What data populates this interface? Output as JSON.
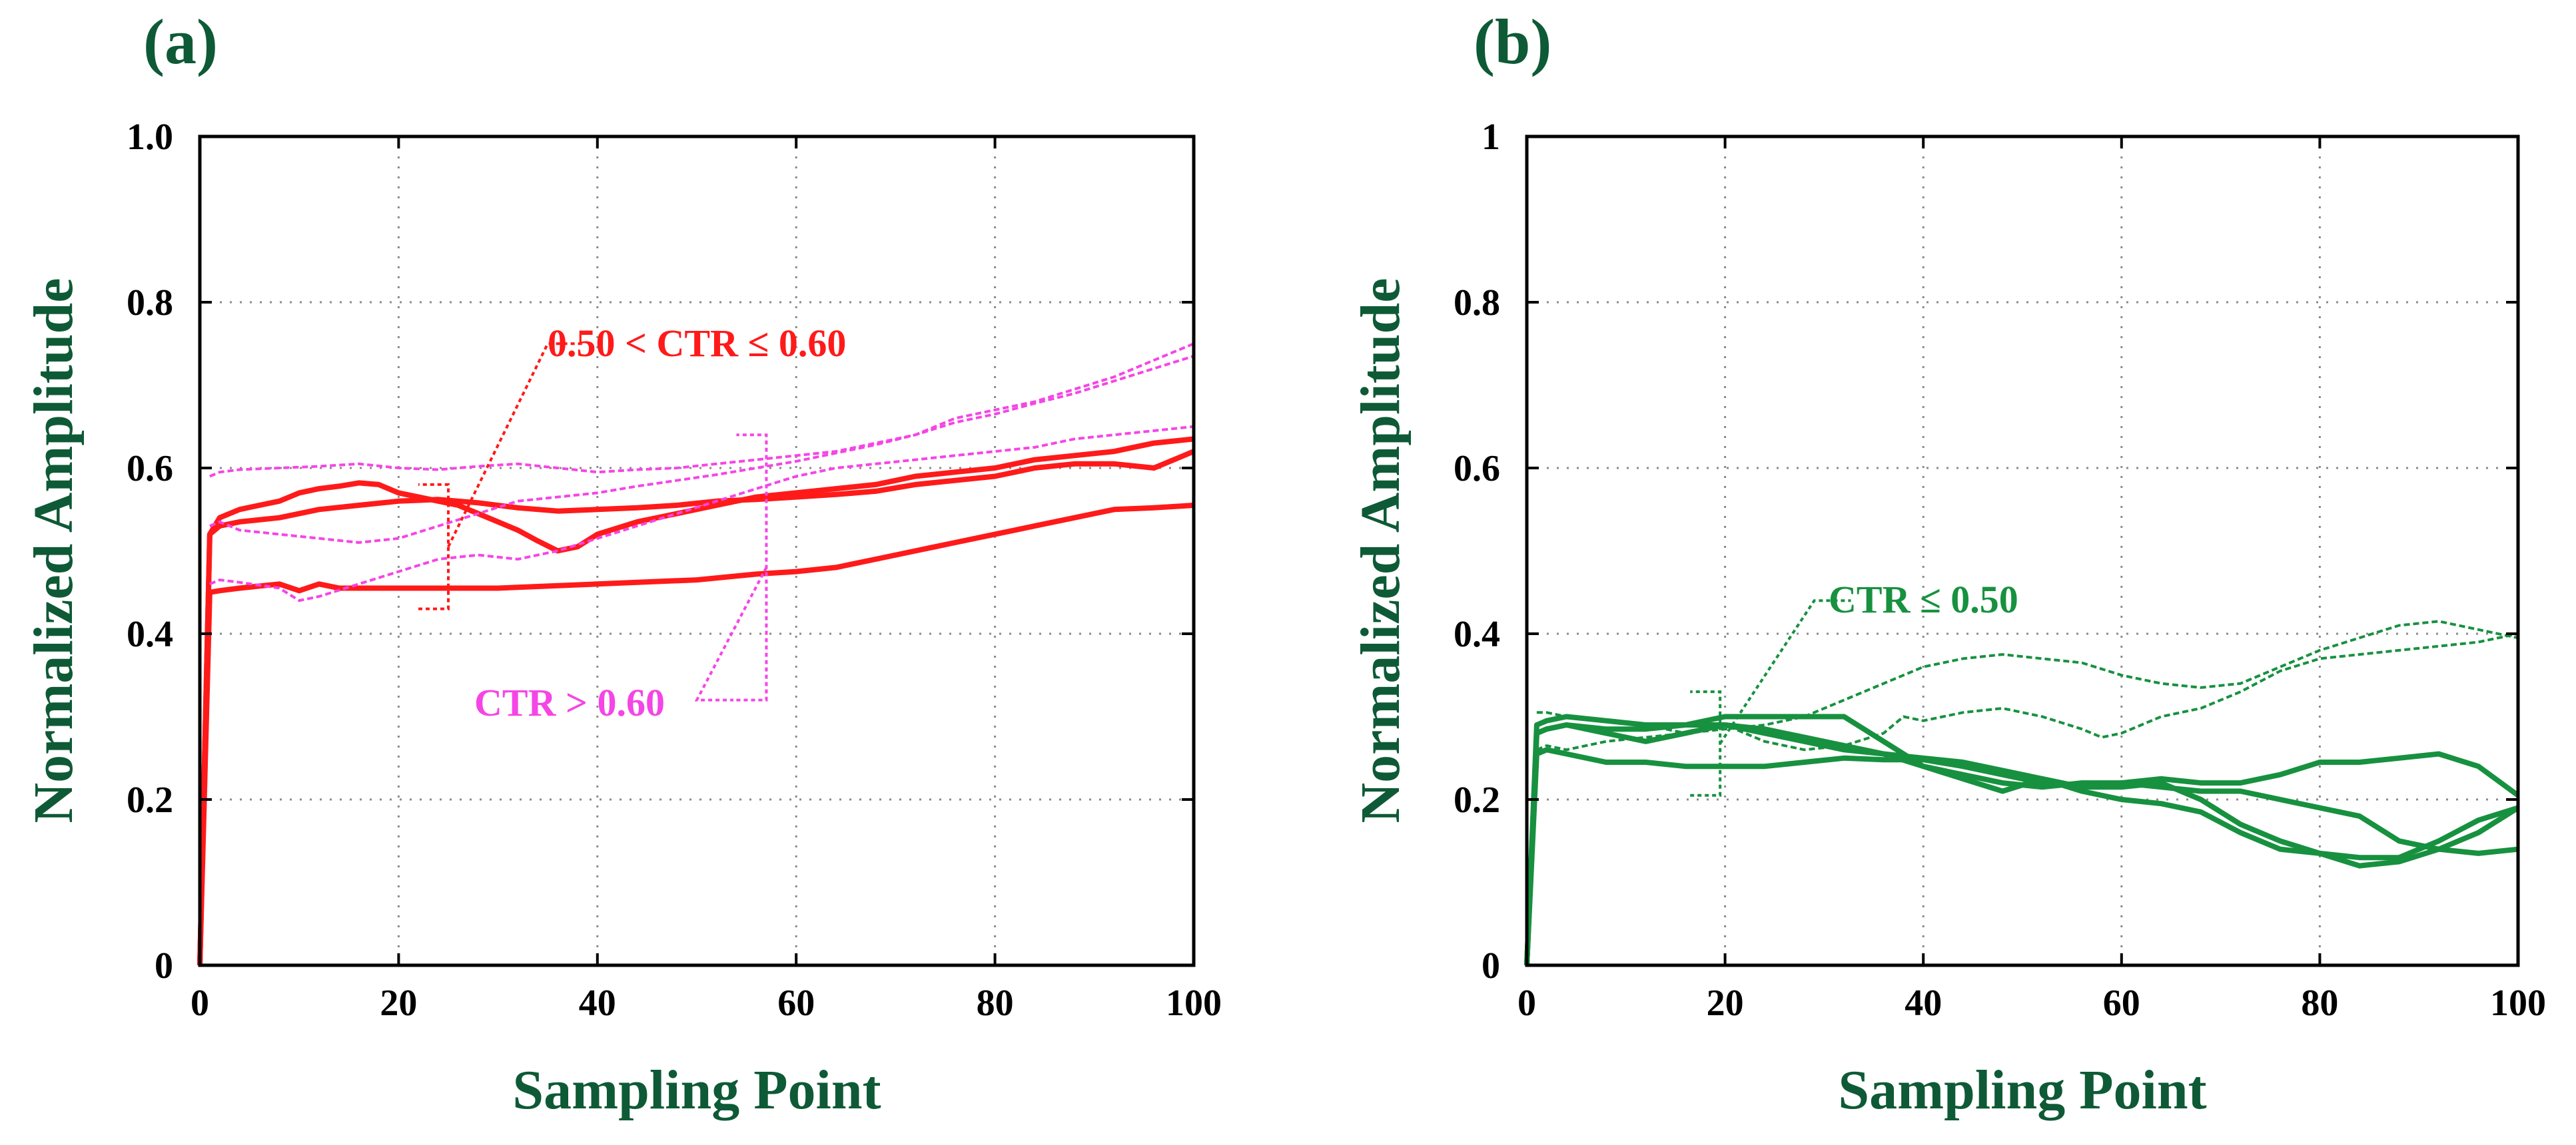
{
  "chart_data": [
    {
      "type": "line",
      "panel_label": "(a)",
      "xlabel": "Sampling Point",
      "ylabel": "Normalized Amplitude",
      "xlim": [
        0,
        100
      ],
      "ylim": [
        0,
        1
      ],
      "xticks": [
        0,
        20,
        40,
        60,
        80,
        100
      ],
      "yticks": [
        0,
        0.2,
        0.4,
        0.6,
        0.8,
        1.0
      ],
      "ytick_labels": [
        "0",
        "0.2",
        "0.4",
        "0.6",
        "0.8",
        "1.0"
      ],
      "grid": true,
      "colors": {
        "solid": "#ff1a1a",
        "dashed": "#f545e6",
        "annot_solid": "#ff1a1a",
        "annot_dashed": "#f545e6"
      },
      "annotations": [
        {
          "text": "0.50 < CTR ≤ 0.60",
          "group": "solid",
          "color": "#ff1a1a",
          "bracket_x": 25,
          "bracket_y": [
            0.43,
            0.58
          ],
          "leader_to": [
            35,
            0.75
          ]
        },
        {
          "text": "CTR > 0.60",
          "group": "dashed",
          "color": "#f545e6",
          "bracket_x": 57,
          "bracket_y": [
            0.32,
            0.64
          ],
          "leader_to": [
            50,
            0.32
          ]
        }
      ],
      "series": [
        {
          "name": "a-solid-1",
          "style": "solid",
          "x": [
            0,
            1,
            2,
            4,
            6,
            8,
            10,
            12,
            14,
            16,
            18,
            20,
            22,
            24,
            26,
            28,
            30,
            32,
            34,
            36,
            38,
            40,
            44,
            48,
            52,
            56,
            60,
            64,
            68,
            72,
            76,
            80,
            84,
            88,
            92,
            96,
            100
          ],
          "values": [
            0,
            0.52,
            0.54,
            0.55,
            0.555,
            0.56,
            0.57,
            0.575,
            0.578,
            0.582,
            0.58,
            0.57,
            0.565,
            0.56,
            0.555,
            0.545,
            0.535,
            0.525,
            0.512,
            0.5,
            0.505,
            0.52,
            0.535,
            0.545,
            0.555,
            0.565,
            0.57,
            0.575,
            0.58,
            0.59,
            0.595,
            0.6,
            0.61,
            0.615,
            0.62,
            0.63,
            0.635
          ]
        },
        {
          "name": "a-solid-2",
          "style": "solid",
          "x": [
            0,
            1,
            2,
            4,
            8,
            12,
            16,
            20,
            24,
            28,
            32,
            36,
            40,
            44,
            48,
            52,
            56,
            60,
            64,
            68,
            72,
            76,
            80,
            84,
            88,
            92,
            96,
            98,
            100
          ],
          "values": [
            0,
            0.52,
            0.53,
            0.535,
            0.54,
            0.55,
            0.555,
            0.56,
            0.562,
            0.558,
            0.552,
            0.548,
            0.55,
            0.552,
            0.555,
            0.56,
            0.562,
            0.565,
            0.568,
            0.572,
            0.58,
            0.585,
            0.59,
            0.6,
            0.605,
            0.605,
            0.6,
            0.61,
            0.62
          ]
        },
        {
          "name": "a-solid-3",
          "style": "solid",
          "x": [
            0,
            1,
            2,
            4,
            8,
            10,
            12,
            14,
            16,
            20,
            30,
            40,
            50,
            56,
            60,
            64,
            68,
            72,
            76,
            80,
            84,
            88,
            92,
            96,
            100
          ],
          "values": [
            0,
            0.45,
            0.452,
            0.455,
            0.46,
            0.452,
            0.46,
            0.455,
            0.455,
            0.455,
            0.455,
            0.46,
            0.465,
            0.472,
            0.475,
            0.48,
            0.49,
            0.5,
            0.51,
            0.52,
            0.53,
            0.54,
            0.55,
            0.552,
            0.555
          ]
        },
        {
          "name": "a-dashed-1",
          "style": "dashed",
          "x": [
            1,
            2,
            4,
            8,
            12,
            16,
            20,
            24,
            28,
            32,
            36,
            40,
            44,
            48,
            52,
            56,
            60,
            64,
            68,
            72,
            76,
            80,
            84,
            88,
            92,
            96,
            100
          ],
          "values": [
            0.59,
            0.595,
            0.598,
            0.6,
            0.602,
            0.605,
            0.6,
            0.598,
            0.602,
            0.605,
            0.6,
            0.595,
            0.598,
            0.6,
            0.605,
            0.61,
            0.615,
            0.62,
            0.63,
            0.64,
            0.66,
            0.67,
            0.68,
            0.695,
            0.71,
            0.73,
            0.75
          ]
        },
        {
          "name": "a-dashed-2",
          "style": "dashed",
          "x": [
            1,
            2,
            4,
            8,
            12,
            16,
            20,
            24,
            28,
            32,
            36,
            40,
            44,
            48,
            52,
            56,
            60,
            64,
            68,
            72,
            76,
            80,
            84,
            88,
            92,
            96,
            100
          ],
          "values": [
            0.53,
            0.535,
            0.525,
            0.52,
            0.515,
            0.51,
            0.515,
            0.53,
            0.545,
            0.56,
            0.565,
            0.57,
            0.578,
            0.585,
            0.592,
            0.6,
            0.608,
            0.618,
            0.628,
            0.64,
            0.655,
            0.665,
            0.678,
            0.69,
            0.705,
            0.72,
            0.735
          ]
        },
        {
          "name": "a-dashed-3",
          "style": "dashed",
          "x": [
            1,
            2,
            4,
            8,
            10,
            12,
            16,
            20,
            24,
            28,
            32,
            36,
            40,
            44,
            48,
            52,
            56,
            60,
            64,
            68,
            72,
            76,
            80,
            84,
            88,
            92,
            96,
            100
          ],
          "values": [
            0.46,
            0.465,
            0.462,
            0.455,
            0.44,
            0.445,
            0.46,
            0.475,
            0.49,
            0.495,
            0.49,
            0.5,
            0.515,
            0.53,
            0.545,
            0.56,
            0.575,
            0.59,
            0.6,
            0.605,
            0.61,
            0.615,
            0.62,
            0.625,
            0.635,
            0.64,
            0.645,
            0.65
          ]
        }
      ]
    },
    {
      "type": "line",
      "panel_label": "(b)",
      "xlabel": "Sampling Point",
      "ylabel": "Normalized Amplitude",
      "xlim": [
        0,
        100
      ],
      "ylim": [
        0,
        1
      ],
      "xticks": [
        0,
        20,
        40,
        60,
        80,
        100
      ],
      "yticks": [
        0,
        0.2,
        0.4,
        0.6,
        0.8,
        1.0
      ],
      "ytick_labels": [
        "0",
        "0.2",
        "0.4",
        "0.6",
        "0.8",
        "1"
      ],
      "grid": true,
      "colors": {
        "solid": "#17913f",
        "dashed": "#17913f",
        "annot_solid": "#17913f",
        "annot_dashed": "#17913f"
      },
      "annotations": [
        {
          "text": "CTR ≤ 0.50",
          "group": "both",
          "color": "#17913f",
          "bracket_x": 19.5,
          "bracket_y": [
            0.205,
            0.33
          ],
          "leader_to": [
            29,
            0.44
          ]
        }
      ],
      "series": [
        {
          "name": "b-solid-1",
          "style": "solid",
          "x": [
            0,
            1,
            2,
            4,
            8,
            12,
            16,
            20,
            24,
            28,
            32,
            36,
            40,
            44,
            48,
            52,
            56,
            60,
            64,
            68,
            72,
            76,
            80,
            84,
            88,
            92,
            96,
            100
          ],
          "values": [
            0,
            0.29,
            0.295,
            0.3,
            0.295,
            0.29,
            0.29,
            0.3,
            0.3,
            0.3,
            0.3,
            0.27,
            0.24,
            0.23,
            0.22,
            0.215,
            0.22,
            0.22,
            0.215,
            0.21,
            0.21,
            0.2,
            0.19,
            0.18,
            0.15,
            0.14,
            0.135,
            0.14
          ]
        },
        {
          "name": "b-solid-2",
          "style": "solid",
          "x": [
            0,
            1,
            2,
            4,
            8,
            12,
            16,
            20,
            24,
            28,
            32,
            36,
            40,
            44,
            48,
            52,
            56,
            60,
            64,
            68,
            72,
            76,
            80,
            84,
            88,
            92,
            96,
            100
          ],
          "values": [
            0,
            0.28,
            0.285,
            0.29,
            0.28,
            0.27,
            0.28,
            0.29,
            0.28,
            0.27,
            0.26,
            0.255,
            0.25,
            0.245,
            0.235,
            0.225,
            0.215,
            0.22,
            0.225,
            0.22,
            0.22,
            0.23,
            0.245,
            0.245,
            0.25,
            0.255,
            0.24,
            0.205
          ]
        },
        {
          "name": "b-solid-3",
          "style": "solid",
          "x": [
            0,
            1,
            2,
            4,
            8,
            12,
            16,
            20,
            24,
            28,
            32,
            36,
            40,
            44,
            48,
            52,
            56,
            60,
            64,
            68,
            72,
            76,
            80,
            84,
            88,
            92,
            96,
            100
          ],
          "values": [
            0,
            0.255,
            0.26,
            0.255,
            0.245,
            0.245,
            0.24,
            0.24,
            0.24,
            0.245,
            0.25,
            0.248,
            0.248,
            0.24,
            0.23,
            0.22,
            0.215,
            0.215,
            0.22,
            0.2,
            0.17,
            0.15,
            0.135,
            0.12,
            0.125,
            0.14,
            0.16,
            0.19
          ]
        },
        {
          "name": "b-solid-4",
          "style": "solid",
          "x": [
            0,
            1,
            2,
            4,
            8,
            12,
            16,
            20,
            24,
            28,
            32,
            36,
            40,
            44,
            48,
            52,
            56,
            60,
            64,
            68,
            72,
            76,
            80,
            84,
            88,
            92,
            96,
            100
          ],
          "values": [
            0,
            0.28,
            0.285,
            0.29,
            0.285,
            0.285,
            0.29,
            0.29,
            0.285,
            0.275,
            0.265,
            0.255,
            0.24,
            0.225,
            0.21,
            0.225,
            0.21,
            0.2,
            0.195,
            0.185,
            0.16,
            0.14,
            0.135,
            0.13,
            0.13,
            0.15,
            0.175,
            0.19
          ]
        },
        {
          "name": "b-dashed-1",
          "style": "dashed",
          "x": [
            1,
            2,
            4,
            8,
            12,
            16,
            20,
            24,
            28,
            32,
            36,
            40,
            44,
            48,
            52,
            56,
            60,
            64,
            68,
            72,
            76,
            80,
            84,
            88,
            92,
            96,
            100
          ],
          "values": [
            0.305,
            0.305,
            0.3,
            0.295,
            0.29,
            0.28,
            0.285,
            0.29,
            0.3,
            0.32,
            0.34,
            0.36,
            0.37,
            0.375,
            0.37,
            0.365,
            0.35,
            0.34,
            0.335,
            0.34,
            0.36,
            0.38,
            0.395,
            0.41,
            0.415,
            0.405,
            0.395
          ]
        },
        {
          "name": "b-dashed-2",
          "style": "dashed",
          "x": [
            1,
            2,
            4,
            8,
            12,
            16,
            20,
            24,
            28,
            32,
            36,
            38,
            40,
            44,
            48,
            52,
            56,
            58,
            60,
            64,
            68,
            72,
            76,
            80,
            84,
            88,
            92,
            96,
            100
          ],
          "values": [
            0.26,
            0.265,
            0.26,
            0.27,
            0.275,
            0.28,
            0.29,
            0.27,
            0.26,
            0.265,
            0.28,
            0.3,
            0.295,
            0.305,
            0.31,
            0.3,
            0.285,
            0.275,
            0.28,
            0.3,
            0.31,
            0.33,
            0.355,
            0.37,
            0.375,
            0.38,
            0.385,
            0.39,
            0.4
          ]
        }
      ]
    }
  ]
}
